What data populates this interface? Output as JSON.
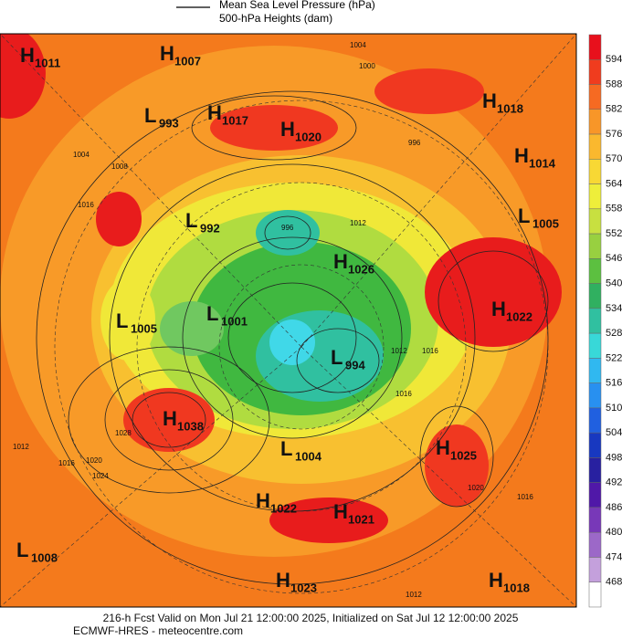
{
  "legend": {
    "lines": [
      "Mean Sea Level Pressure (hPa)",
      "500-hPa Heights (dam)"
    ]
  },
  "colorbar": {
    "labels": [
      594,
      588,
      582,
      576,
      570,
      564,
      558,
      552,
      546,
      540,
      534,
      528,
      522,
      516,
      510,
      504,
      498,
      492,
      486,
      480,
      474,
      468
    ]
  },
  "centers": [
    {
      "letter": "H",
      "value": "1011"
    },
    {
      "letter": "H",
      "value": "1007"
    },
    {
      "letter": "L",
      "value": "993"
    },
    {
      "letter": "H",
      "value": "1017"
    },
    {
      "letter": "H",
      "value": "1020"
    },
    {
      "letter": "H",
      "value": "1018"
    },
    {
      "letter": "H",
      "value": "1014"
    },
    {
      "letter": "L",
      "value": "992"
    },
    {
      "letter": "L",
      "value": "1005"
    },
    {
      "letter": "H",
      "value": "1026"
    },
    {
      "letter": "L",
      "value": "1005"
    },
    {
      "letter": "L",
      "value": "1001"
    },
    {
      "letter": "H",
      "value": "1022"
    },
    {
      "letter": "L",
      "value": "994"
    },
    {
      "letter": "H",
      "value": "1038"
    },
    {
      "letter": "H",
      "value": "1025"
    },
    {
      "letter": "L",
      "value": "1004"
    },
    {
      "letter": "H",
      "value": "1022"
    },
    {
      "letter": "H",
      "value": "1021"
    },
    {
      "letter": "L",
      "value": "1008"
    },
    {
      "letter": "H",
      "value": "1023"
    },
    {
      "letter": "H",
      "value": "1018"
    }
  ],
  "isobar_labels": [
    "1004",
    "1000",
    "996",
    "1004",
    "1008",
    "1016",
    "996",
    "1012",
    "1016",
    "1012",
    "1016",
    "1012",
    "1016",
    "1020",
    "1024",
    "1028",
    "1020",
    "1016",
    "1012"
  ],
  "footer": {
    "lines": [
      "216-h Fcst Valid on Mon Jul 21 12:00:00 2025, Initialized on Sat Jul 12 12:00:00 2025",
      "ECMWF-HRES - meteocentre.com"
    ]
  }
}
